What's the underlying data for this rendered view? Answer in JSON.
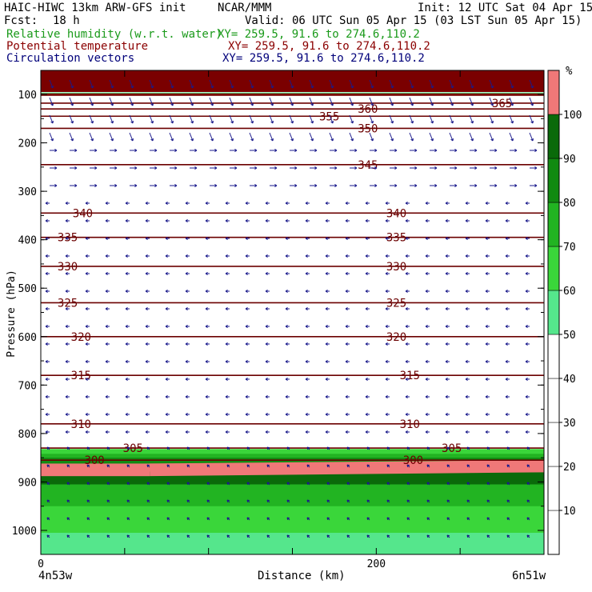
{
  "header": {
    "model_title": "HAIC-HIWC 13km ARW-GFS init",
    "org": "NCAR/MMM",
    "init": "Init: 12 UTC Sat 04 Apr 15",
    "fcst_label": "Fcst:",
    "fcst_value": "18 h",
    "valid": "Valid: 06 UTC Sun 05 Apr 15 (03 LST Sun 05 Apr 15)"
  },
  "fields": [
    {
      "name": "Relative humidity (w.r.t. water)",
      "xy": "XY= 259.5, 91.6 to 274.6,110.2",
      "color": "#1a9a1a"
    },
    {
      "name": "Potential temperature",
      "xy": "XY= 259.5, 91.6 to 274.6,110.2",
      "color": "#8b0000"
    },
    {
      "name": "Circulation vectors",
      "xy": "XY= 259.5, 91.6 to 274.6,110.2",
      "color": "#00007a"
    }
  ],
  "colors": {
    "rh_band": [
      "#ffffff",
      "#55e68c",
      "#3ad63a",
      "#22b422",
      "#118a11",
      "#0a6a0a",
      "#f07878"
    ],
    "theta_line": "#6b0000",
    "top_fill": "#7a0000",
    "vectors": "#1a1a8c"
  },
  "chart_data": {
    "type": "cross-section",
    "xlabel": "Distance (km)",
    "ylabel": "Pressure (hPa)",
    "x_ticks": [
      "0",
      "200"
    ],
    "x_endpoints": {
      "left": "4n53w",
      "right": "6n51w"
    },
    "y_ticks": [
      "100",
      "200",
      "300",
      "400",
      "500",
      "600",
      "700",
      "800",
      "900",
      "1000"
    ],
    "y_tick_values": [
      100,
      200,
      300,
      400,
      500,
      600,
      700,
      800,
      900,
      1000
    ],
    "xlim": [
      0,
      300
    ],
    "ylim": [
      1000,
      100
    ],
    "colorbar": {
      "unit": "%",
      "ticks": [
        "10",
        "20",
        "30",
        "40",
        "50",
        "60",
        "70",
        "80",
        "90",
        "100"
      ],
      "levels": [
        0,
        10,
        20,
        30,
        40,
        50,
        60,
        70,
        80,
        90,
        100,
        110
      ]
    },
    "theta_contours": [
      {
        "label": "365",
        "pressure": 118,
        "label_x_km": 275
      },
      {
        "label": "360",
        "pressure": 130,
        "label_x_km": 195
      },
      {
        "label": "355",
        "pressure": 145,
        "label_x_km": 172
      },
      {
        "label": "350",
        "pressure": 170,
        "label_x_km": 195
      },
      {
        "label": "345",
        "pressure": 245,
        "label_x_km": 195
      },
      {
        "label": "340",
        "pressure": 345,
        "label_x_km": 25,
        "label2_x_km": 212
      },
      {
        "label": "335",
        "pressure": 395,
        "label_x_km": 16,
        "label2_x_km": 212
      },
      {
        "label": "330",
        "pressure": 455,
        "label_x_km": 16,
        "label2_x_km": 212
      },
      {
        "label": "325",
        "pressure": 530,
        "label_x_km": 16,
        "label2_x_km": 212
      },
      {
        "label": "320",
        "pressure": 600,
        "label_x_km": 24,
        "label2_x_km": 212
      },
      {
        "label": "315",
        "pressure": 680,
        "label_x_km": 24,
        "label2_x_km": 220
      },
      {
        "label": "310",
        "pressure": 780,
        "label_x_km": 24,
        "label2_x_km": 220
      },
      {
        "label": "305",
        "pressure": 830,
        "label_x_km": 55,
        "label2_x_km": 245
      },
      {
        "label": "300",
        "pressure": 855,
        "label_x_km": 32,
        "label2_x_km": 222
      }
    ]
  }
}
